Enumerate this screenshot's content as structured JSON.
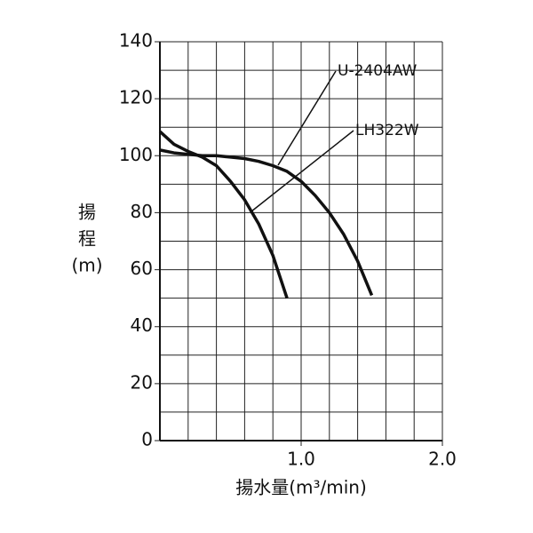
{
  "chart_data": {
    "type": "line",
    "xlabel": "揚水量(m³/min)",
    "ylabel": [
      "揚",
      "程",
      "(m)"
    ],
    "x": [
      0,
      0.1,
      0.2,
      0.3,
      0.4,
      0.5,
      0.6,
      0.7,
      0.8,
      0.9,
      1.0,
      1.1,
      1.2,
      1.3,
      1.4,
      1.5
    ],
    "series": [
      {
        "name": "U-2404AW",
        "color": "#111111",
        "values": [
          102,
          101,
          100.5,
          100,
          100,
          99.5,
          99,
          98,
          96.5,
          94.5,
          91,
          86,
          80,
          72.5,
          63,
          51
        ]
      },
      {
        "name": "LH322W",
        "color": "#111111",
        "values": [
          108.5,
          104,
          101.5,
          99.5,
          96.5,
          91,
          84.5,
          76,
          65,
          50,
          null,
          null,
          null,
          null,
          null,
          null
        ]
      }
    ],
    "xlim": [
      0,
      2.0
    ],
    "ylim": [
      0,
      140
    ],
    "xticks": [
      {
        "value": 1.0,
        "label": "1.0"
      },
      {
        "value": 2.0,
        "label": "2.0"
      }
    ],
    "yticks": [
      0,
      20,
      40,
      60,
      80,
      100,
      120,
      140
    ],
    "x_minor_grid": [
      0.2,
      0.4,
      0.6,
      0.8,
      1.2,
      1.4,
      1.6,
      1.8
    ],
    "y_minor_grid": [
      10,
      30,
      50,
      70,
      90,
      110,
      130
    ],
    "grid": true
  }
}
